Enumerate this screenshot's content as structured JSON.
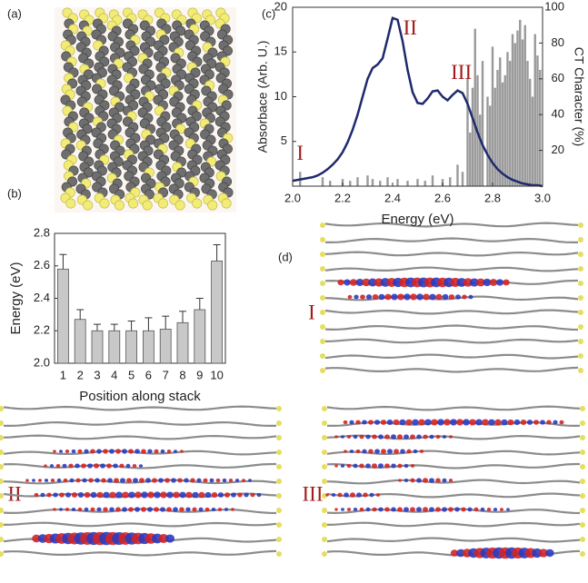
{
  "panel_labels": [
    "(a)",
    "(b)",
    "(c)",
    "(d)"
  ],
  "orbital_labels": [
    "I",
    "II",
    "III"
  ],
  "chart_data": [
    {
      "type": "bar",
      "xlabel": "Position along stack",
      "ylabel": "Energy (eV)",
      "categories": [
        "1",
        "2",
        "3",
        "4",
        "5",
        "6",
        "7",
        "8",
        "9",
        "10"
      ],
      "values": [
        2.58,
        2.27,
        2.2,
        2.2,
        2.2,
        2.2,
        2.21,
        2.25,
        2.33,
        2.63
      ],
      "errors": [
        0.09,
        0.06,
        0.04,
        0.04,
        0.06,
        0.08,
        0.08,
        0.07,
        0.07,
        0.1
      ],
      "color": "#c8c8c8",
      "ylim": [
        2.0,
        2.8
      ],
      "yticks": [
        {
          "value": 2.0,
          "label": "2.0"
        },
        2.2,
        2.4,
        2.6,
        2.8
      ]
    },
    {
      "type": "line",
      "xlabel": "Energy (eV)",
      "ylabel": "Absorbace (Arb. U.)",
      "y2label": "CT Character (%)",
      "x": [
        2.0,
        2.02,
        2.04,
        2.06,
        2.08,
        2.1,
        2.12,
        2.14,
        2.16,
        2.18,
        2.2,
        2.22,
        2.24,
        2.26,
        2.28,
        2.3,
        2.32,
        2.34,
        2.36,
        2.38,
        2.4,
        2.42,
        2.44,
        2.46,
        2.48,
        2.5,
        2.52,
        2.54,
        2.56,
        2.58,
        2.6,
        2.62,
        2.64,
        2.66,
        2.68,
        2.7,
        2.72,
        2.74,
        2.76,
        2.78,
        2.8,
        2.82,
        2.84,
        2.86,
        2.88,
        2.9,
        2.92,
        2.94,
        2.96,
        2.98,
        3.0
      ],
      "series": [
        {
          "color": "#1f2a6e",
          "values": [
            0.6,
            0.7,
            0.8,
            0.9,
            1.0,
            1.2,
            1.5,
            1.9,
            2.4,
            3.0,
            3.8,
            4.9,
            6.3,
            8.0,
            10.0,
            12.0,
            13.2,
            13.6,
            14.3,
            16.5,
            18.8,
            18.6,
            16.2,
            13.0,
            10.5,
            9.3,
            9.2,
            9.8,
            10.6,
            10.7,
            10.0,
            9.6,
            10.2,
            10.7,
            10.4,
            9.2,
            7.6,
            6.0,
            4.6,
            3.5,
            2.6,
            1.9,
            1.4,
            1.0,
            0.7,
            0.5,
            0.3,
            0.2,
            0.1,
            0.1,
            0.0
          ]
        },
        {
          "type": "bar",
          "axis": "y2",
          "color": "#9a9a9a",
          "x": [
            2.03,
            2.12,
            2.15,
            2.2,
            2.23,
            2.26,
            2.3,
            2.32,
            2.35,
            2.38,
            2.42,
            2.46,
            2.5,
            2.53,
            2.56,
            2.6,
            2.63,
            2.66,
            2.68,
            2.7,
            2.71,
            2.72,
            2.73,
            2.74,
            2.75,
            2.76,
            2.78,
            2.79,
            2.8,
            2.81,
            2.82,
            2.83,
            2.84,
            2.85,
            2.86,
            2.87,
            2.88,
            2.89,
            2.9,
            2.91,
            2.92,
            2.93,
            2.94,
            2.95,
            2.96,
            2.97,
            2.98,
            2.99
          ],
          "values": [
            8,
            5,
            3,
            4,
            3,
            5,
            6,
            4,
            3,
            5,
            4,
            3,
            4,
            3,
            6,
            4,
            5,
            12,
            8,
            60,
            30,
            55,
            88,
            62,
            40,
            70,
            50,
            45,
            78,
            55,
            65,
            72,
            58,
            62,
            75,
            70,
            85,
            80,
            87,
            93,
            82,
            90,
            70,
            60,
            50,
            85,
            73,
            65
          ]
        }
      ],
      "annotations": [
        {
          "text": "I",
          "x": 2.03,
          "y": 3.5
        },
        {
          "text": "II",
          "x": 2.47,
          "y": 17.5
        },
        {
          "text": "III",
          "x": 2.675,
          "y": 12.5
        }
      ],
      "xlim": [
        2.0,
        3.0
      ],
      "xticks": [
        {
          "value": 2.0,
          "label": "2.0"
        },
        2.2,
        2.4,
        2.6,
        2.8,
        {
          "value": 3.0,
          "label": "3.0"
        }
      ],
      "ylim": [
        0,
        20
      ],
      "yticks": [
        5,
        10,
        15,
        20
      ],
      "y2lim": [
        0,
        100
      ],
      "y2ticks": [
        20,
        40,
        60,
        80,
        100
      ]
    }
  ]
}
